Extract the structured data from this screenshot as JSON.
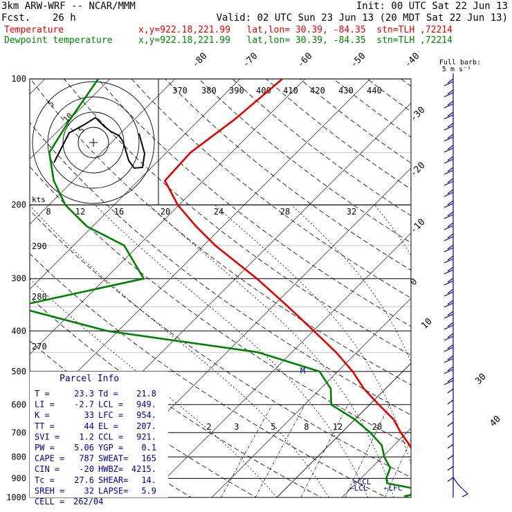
{
  "header": {
    "model": "3km ARW-WRF -- NCAR/MMM",
    "init": "Init: 00 UTC Sat 22 Jun 13",
    "fcst_label": "Fcst.",
    "fcst_value": "26 h",
    "valid": "Valid: 02 UTC Sun 23 Jun 13 (20 MDT Sat 22 Jun 13)"
  },
  "legend": [
    {
      "label": "Temperature",
      "info": "x,y=922.18,221.99   lat,lon= 30.39, -84.35  stn=TLH ,72214",
      "color": "#e00000"
    },
    {
      "label": "Dewpoint temperature",
      "info": "x,y=922.18,221.99   lat,lon= 30.39, -84.35  stn=TLH ,72214",
      "color": "#008000"
    }
  ],
  "barb_title": {
    "line1": "Full barb:",
    "line2": "5 m s⁻¹"
  },
  "hodograph": {
    "units_label": "kts",
    "ring_labels": [
      "5",
      "10",
      "5"
    ]
  },
  "parcel": {
    "title": "Parcel Info",
    "rows": [
      [
        "T  =",
        "23.3",
        "Td =",
        "21.8"
      ],
      [
        "LI =",
        "-2.7",
        "LCL =",
        "949."
      ],
      [
        "K  =",
        "33",
        "LFC =",
        "954."
      ],
      [
        "TT =",
        "44",
        "EL  =",
        "207."
      ],
      [
        "SVI =",
        "1.2",
        "CCL =",
        "921."
      ],
      [
        "PW =",
        "5.06",
        "YGP =",
        "0.1"
      ],
      [
        "CAPE =",
        "787",
        "SWEAT=",
        "165"
      ],
      [
        "CIN =",
        "-20",
        "HWBZ=",
        "4215."
      ],
      [
        "Tc =",
        "27.6",
        "SHEAR=",
        "14."
      ],
      [
        "SREH =",
        "32",
        "LAPSE=",
        "5.9"
      ]
    ],
    "cell_label": "CELL =",
    "cell_value": "262/04"
  },
  "levels": {
    "lcl_label": "LCL",
    "lfc_label": "LFC",
    "ccl_label": "CCL",
    "marker": "M"
  },
  "colors": {
    "temperature": "#e00000",
    "dewpoint": "#008000",
    "axis": "#000000",
    "panel": "#00008b",
    "barbs": "#00008b"
  },
  "chart_data": {
    "type": "line",
    "y_axis": "pressure (hPa), log scale",
    "ylim": [
      1000,
      100
    ],
    "pressure_ticks": [
      100,
      200,
      300,
      400,
      500,
      600,
      700,
      800,
      900,
      1000
    ],
    "isotherm_labels": [
      -80,
      -70,
      -60,
      -50,
      -40,
      -30,
      -20,
      -10,
      0,
      10,
      30,
      40
    ],
    "theta_labels": [
      370,
      380,
      390,
      400,
      410,
      420,
      430,
      440
    ],
    "theta_side_labels": [
      290,
      280,
      270
    ],
    "mixing_ratio_top_labels": [
      8,
      12,
      16,
      20,
      24,
      28,
      32
    ],
    "mixing_ratio_bottom_labels": [
      2,
      3,
      5,
      8,
      12,
      20
    ],
    "series": [
      {
        "name": "Temperature",
        "pressure": [
          993,
          975,
          950,
          925,
          900,
          850,
          800,
          750,
          700,
          650,
          600,
          550,
          500,
          450,
          400,
          350,
          300,
          250,
          225,
          200,
          175,
          150,
          125,
          100
        ],
        "temperature": [
          24.1,
          23.3,
          21.8,
          20.8,
          19.7,
          17.7,
          15.1,
          12.4,
          9.1,
          5.9,
          1.4,
          -3.3,
          -7.7,
          -13.2,
          -19.9,
          -27.6,
          -36.7,
          -48.2,
          -54.1,
          -60.2,
          -65.9,
          -66.3,
          -64.6,
          -63.5
        ]
      },
      {
        "name": "Dewpoint temperature",
        "pressure": [
          993,
          975,
          950,
          925,
          900,
          850,
          800,
          750,
          700,
          650,
          600,
          550,
          500,
          450,
          400,
          350,
          300,
          250,
          225,
          200,
          175,
          150,
          125,
          100
        ],
        "temperature": [
          19.4,
          21.8,
          19.4,
          14.8,
          13.9,
          12.9,
          10.3,
          8.1,
          4.4,
          -0.1,
          -5.9,
          -8.4,
          -12.8,
          -25.2,
          -51.7,
          -69.6,
          -54.1,
          -62.2,
          -70.9,
          -77.5,
          -83.0,
          -88.0,
          -89.9,
          -91.8
        ]
      }
    ]
  }
}
